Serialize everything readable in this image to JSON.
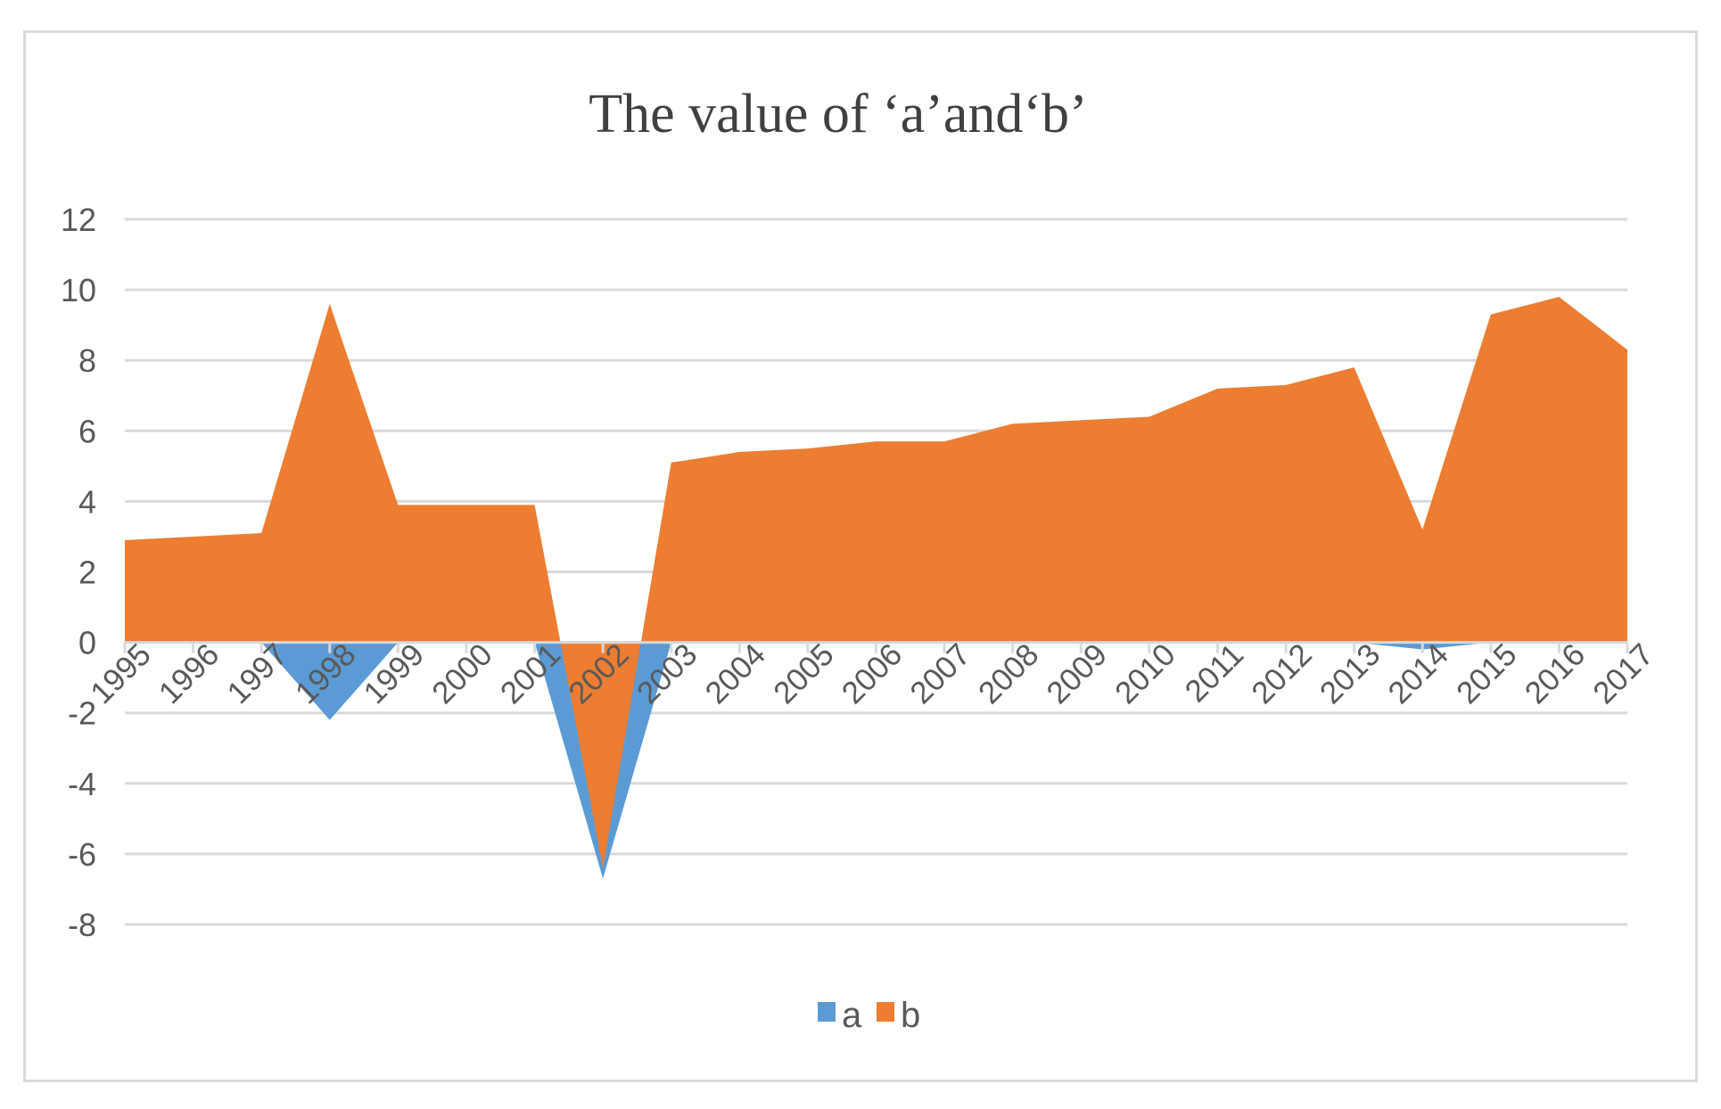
{
  "chart_data": {
    "type": "area",
    "title": "The value of ‘a’and‘b’",
    "xlabel": "",
    "ylabel": "",
    "ylim": [
      -8,
      12
    ],
    "yticks": [
      "12",
      "10",
      "8",
      "6",
      "4",
      "2",
      "0",
      "-2",
      "-4",
      "-6",
      "-8"
    ],
    "categories": [
      "1995",
      "1996",
      "1997",
      "1998",
      "1999",
      "2000",
      "2001",
      "2002",
      "2003",
      "2004",
      "2005",
      "2006",
      "2007",
      "2008",
      "2009",
      "2010",
      "2011",
      "2012",
      "2013",
      "2014",
      "2015",
      "2016",
      "2017"
    ],
    "series": [
      {
        "name": "a",
        "color": "#5b9bd5",
        "values": [
          0,
          0,
          0,
          -2.2,
          0,
          0,
          0,
          -6.7,
          0,
          0,
          0,
          0,
          0,
          0,
          0,
          0,
          0,
          0,
          0,
          -0.2,
          0,
          0,
          0
        ]
      },
      {
        "name": "b",
        "color": "#ed7d31",
        "values": [
          2.9,
          3.0,
          3.1,
          9.6,
          3.9,
          3.9,
          3.9,
          -6.4,
          5.1,
          5.4,
          5.5,
          5.7,
          5.7,
          6.2,
          6.3,
          6.4,
          7.2,
          7.3,
          7.8,
          3.2,
          9.3,
          9.8,
          8.3
        ]
      }
    ],
    "grid": true,
    "legend": "bottom-center"
  }
}
